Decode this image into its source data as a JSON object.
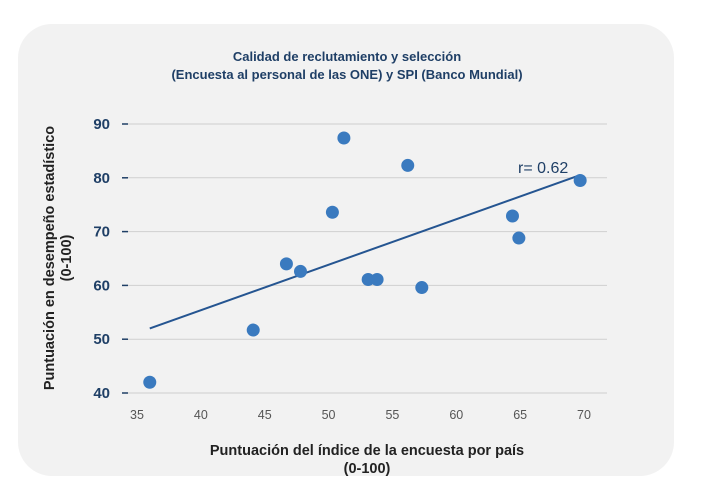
{
  "chart_data": {
    "type": "scatter",
    "title": [
      "Calidad de reclutamiento y selección",
      "(Encuesta al personal de las ONE) y SPI (Banco Mundial)"
    ],
    "xlabel": [
      "Puntuación del índice de la encuesta por país",
      "(0-100)"
    ],
    "ylabel": [
      "Puntuación en desempeño estadístico",
      "(0-100)"
    ],
    "xlim": [
      35,
      70
    ],
    "ylim": [
      40,
      90
    ],
    "xticks": [
      "35",
      "40",
      "45",
      "50",
      "55",
      "60",
      "65",
      "70"
    ],
    "yticks": [
      "40",
      "50",
      "60",
      "70",
      "80",
      "90"
    ],
    "grid": true,
    "color": "#3a7abf",
    "line_color": "#255591",
    "points": [
      {
        "x": 36.0,
        "y": 42.0
      },
      {
        "x": 44.1,
        "y": 51.7
      },
      {
        "x": 46.7,
        "y": 64.0
      },
      {
        "x": 47.8,
        "y": 62.6
      },
      {
        "x": 50.3,
        "y": 73.6
      },
      {
        "x": 51.2,
        "y": 87.4
      },
      {
        "x": 53.1,
        "y": 61.1
      },
      {
        "x": 53.8,
        "y": 61.1
      },
      {
        "x": 56.2,
        "y": 82.3
      },
      {
        "x": 57.3,
        "y": 59.6
      },
      {
        "x": 64.4,
        "y": 72.9
      },
      {
        "x": 64.9,
        "y": 68.8
      },
      {
        "x": 69.7,
        "y": 79.5
      }
    ],
    "trendline": {
      "x": [
        36.0,
        69.7
      ],
      "y": [
        52.0,
        80.5
      ]
    },
    "annotation": "r= 0.62"
  }
}
